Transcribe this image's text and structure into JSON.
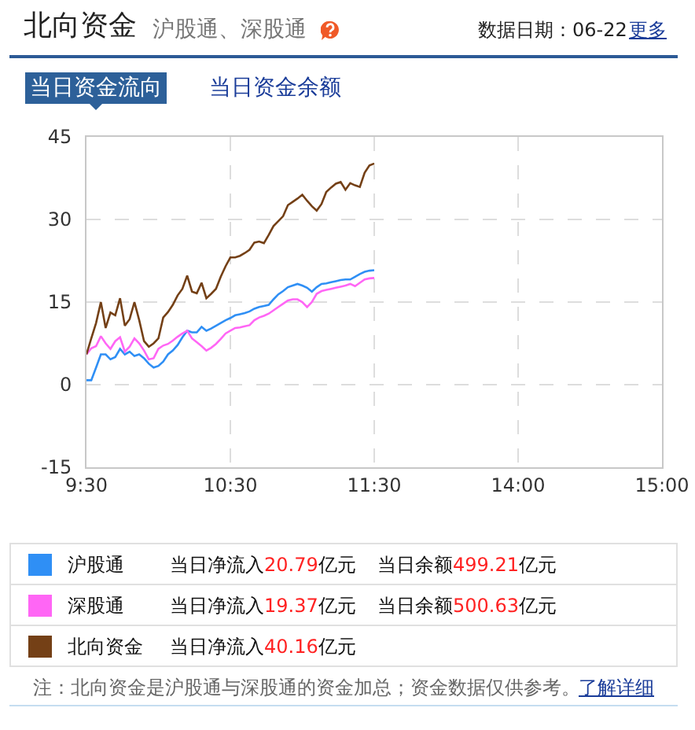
{
  "chart_data": {
    "type": "line",
    "title": "北向资金",
    "subtitle": "沪股通、深股通",
    "annotations": [
      "数据日期：06-22",
      "更多",
      "当日资金流向",
      "当日资金余额",
      "当日净流入20.79亿元",
      "当日余额499.21亿元",
      "当日净流入19.37亿元",
      "当日余额500.63亿元",
      "当日净流入40.16亿元",
      "注：北向资金是沪股通与深股通的资金加总；资金数据仅供参考。",
      "了解详细"
    ],
    "categories": [
      "9:30",
      null,
      null,
      null,
      null,
      null,
      null,
      null,
      null,
      null,
      null,
      null,
      null,
      null,
      null,
      null,
      null,
      null,
      null,
      null,
      null,
      null,
      null,
      null,
      null,
      null,
      null,
      null,
      null,
      null,
      "10:30",
      null,
      null,
      null,
      null,
      null,
      null,
      null,
      null,
      null,
      null,
      null,
      null,
      null,
      null,
      null,
      null,
      null,
      null,
      null,
      null,
      null,
      null,
      null,
      null,
      null,
      null,
      null,
      null,
      null,
      "11:30",
      null,
      null,
      null,
      null,
      null,
      null,
      null,
      null,
      null,
      null,
      null,
      null,
      null,
      null,
      null,
      null,
      null,
      null,
      null,
      null,
      null,
      null,
      null,
      null,
      null,
      null,
      null,
      null,
      null,
      "14:00",
      null,
      null,
      null,
      null,
      null,
      null,
      null,
      null,
      null,
      null,
      null,
      null,
      null,
      null,
      null,
      null,
      null,
      null,
      null,
      null,
      null,
      null,
      null,
      null,
      null,
      null,
      null,
      null,
      null,
      "15:00"
    ],
    "series": [
      {
        "name": "沪股通",
        "color": "#2f8ff5",
        "values": [
          0.8,
          0.8,
          3.1,
          5.5,
          5.5,
          4.6,
          5,
          6.5,
          5.5,
          6,
          5.2,
          5.5,
          4.8,
          3.8,
          3.1,
          3.4,
          4.2,
          5.5,
          6.2,
          7.2,
          8.6,
          9.8,
          9.5,
          9.5,
          10.5,
          9.8,
          10.2,
          10.7,
          11.2,
          11.7,
          12.1,
          12.6,
          12.8,
          13,
          13.3,
          13.8,
          14.1,
          14.3,
          14.5,
          15.5,
          16.4,
          17,
          17.7,
          18,
          18.3,
          18,
          17.6,
          16.9,
          17.7,
          18.3,
          18.4,
          18.6,
          18.8,
          19,
          19.1,
          19.1,
          19.6,
          20.1,
          20.5,
          20.7,
          20.79,
          null,
          null,
          null,
          null,
          null,
          null,
          null,
          null,
          null,
          null,
          null,
          null,
          null,
          null,
          null,
          null,
          null,
          null,
          null,
          null,
          null,
          null,
          null,
          null,
          null,
          null,
          null,
          null,
          null,
          null,
          null,
          null,
          null,
          null,
          null,
          null,
          null,
          null,
          null,
          null,
          null,
          null,
          null,
          null,
          null,
          null,
          null,
          null,
          null,
          null,
          null,
          null,
          null,
          null,
          null,
          null,
          null,
          null,
          null,
          null
        ]
      },
      {
        "name": "深股通",
        "color": "#ff66f5",
        "values": [
          5.5,
          6.6,
          7,
          8.8,
          7.5,
          6.5,
          7.9,
          8.6,
          6,
          6.9,
          8.4,
          7.5,
          6.2,
          4.6,
          4.8,
          6.5,
          7.1,
          7.4,
          8,
          8.7,
          9.3,
          9.8,
          8.4,
          7.7,
          7,
          6.2,
          6.7,
          7.4,
          8.3,
          9.3,
          9.8,
          10.3,
          10.4,
          10.6,
          10.8,
          11.7,
          12.2,
          12.5,
          12.9,
          13.5,
          14.1,
          14.7,
          15.3,
          15.5,
          15.5,
          15,
          14.1,
          15,
          16.5,
          17,
          17.2,
          17.4,
          17.6,
          17.8,
          18,
          18.3,
          17.9,
          18.5,
          19.1,
          19.3,
          19.37,
          null,
          null,
          null,
          null,
          null,
          null,
          null,
          null,
          null,
          null,
          null,
          null,
          null,
          null,
          null,
          null,
          null,
          null,
          null,
          null,
          null,
          null,
          null,
          null,
          null,
          null,
          null,
          null,
          null,
          null,
          null,
          null,
          null,
          null,
          null,
          null,
          null,
          null,
          null,
          null,
          null,
          null,
          null,
          null,
          null,
          null,
          null,
          null,
          null,
          null,
          null,
          null,
          null,
          null,
          null,
          null,
          null,
          null,
          null,
          null
        ]
      },
      {
        "name": "北向资金",
        "color": "#744016",
        "values": [
          5.5,
          8.4,
          11.2,
          15,
          10.3,
          13.1,
          12.6,
          15.7,
          10.7,
          11.9,
          15,
          11.7,
          7.9,
          6.9,
          7.5,
          8.4,
          12.2,
          13.2,
          14.5,
          16.2,
          17.4,
          19.8,
          16.9,
          16.6,
          18.5,
          15.7,
          16.5,
          17.4,
          19.6,
          21.5,
          23.1,
          23.1,
          23.4,
          23.9,
          24.5,
          25.8,
          26,
          25.7,
          27.2,
          28.8,
          29.7,
          30.6,
          32.6,
          33.2,
          33.8,
          34.5,
          33.4,
          32.4,
          31.6,
          32.8,
          35,
          35.8,
          36.5,
          36.8,
          35.4,
          36.6,
          36.2,
          35.9,
          38.5,
          39.8,
          40.16,
          null,
          null,
          null,
          null,
          null,
          null,
          null,
          null,
          null,
          null,
          null,
          null,
          null,
          null,
          null,
          null,
          null,
          null,
          null,
          null,
          null,
          null,
          null,
          null,
          null,
          null,
          null,
          null,
          null,
          null,
          null,
          null,
          null,
          null,
          null,
          null,
          null,
          null,
          null,
          null,
          null,
          null,
          null,
          null,
          null,
          null,
          null,
          null,
          null,
          null,
          null,
          null,
          null,
          null,
          null,
          null,
          null,
          null,
          null,
          null
        ]
      }
    ],
    "ylim": [
      -15,
      45
    ],
    "yticks": [
      -15,
      0,
      15,
      30,
      45
    ],
    "grid": true,
    "legend": "bottom"
  }
}
